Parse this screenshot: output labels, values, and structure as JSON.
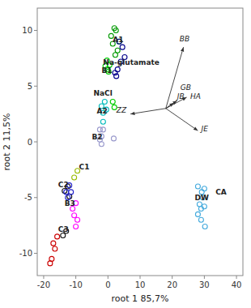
{
  "chart_data": {
    "type": "scatter",
    "xlabel": "root 1   85,7%",
    "ylabel": "root 2   11,5%",
    "xlim": [
      -22,
      42
    ],
    "ylim": [
      -12,
      12
    ],
    "xticks": [
      -20,
      -10,
      0,
      10,
      20,
      30,
      40
    ],
    "yticks": [
      -10,
      -5,
      0,
      5,
      10
    ],
    "grid": false,
    "marker": "hollow-circle",
    "series": [
      {
        "color": "#009900",
        "x": [
          2.0,
          2.5,
          1.0,
          3.5,
          1.5,
          3.0,
          2.3
        ],
        "values": [
          10.2,
          10.0,
          9.5,
          9.0,
          8.8,
          8.2,
          7.8
        ]
      },
      {
        "color": "#00008b",
        "x": [
          3.5,
          4.5,
          5.2,
          4.0
        ],
        "values": [
          9.0,
          8.5,
          7.6,
          7.2
        ]
      },
      {
        "color": "#00cc00",
        "x": [
          -0.8,
          -0.3,
          0.2,
          0.5,
          -0.3
        ],
        "values": [
          6.8,
          6.5,
          6.3,
          6.9,
          7.3
        ]
      },
      {
        "color": "#00008b",
        "x": [
          2.2,
          3.0,
          2.6
        ],
        "values": [
          6.2,
          6.5,
          5.9
        ]
      },
      {
        "color": "#00bbbb",
        "x": [
          -2.0,
          -1.5,
          -1.0,
          -0.5,
          -1.5
        ],
        "values": [
          3.2,
          2.6,
          3.6,
          2.9,
          1.8
        ]
      },
      {
        "color": "#00cc00",
        "x": [
          1.5,
          2.0
        ],
        "values": [
          3.6,
          3.1
        ]
      },
      {
        "color": "#9999cc",
        "x": [
          -2.5,
          -2.0,
          -1.5,
          -2.0,
          -2.5
        ],
        "values": [
          1.1,
          0.5,
          1.1,
          -0.2,
          0.2
        ]
      },
      {
        "color": "#9999cc",
        "x": [
          1.8
        ],
        "values": [
          0.3
        ]
      },
      {
        "color": "#99bb00",
        "x": [
          -9.5,
          -10.5
        ],
        "values": [
          -2.6,
          -3.2
        ]
      },
      {
        "color": "#111111",
        "x": [
          -12.5,
          -13.5,
          -12.0
        ],
        "values": [
          -4.0,
          -4.4,
          -4.9
        ]
      },
      {
        "color": "#2222cc",
        "x": [
          -11.5,
          -12.5,
          -13.0,
          -12.0
        ],
        "values": [
          -4.5,
          -5.0,
          -4.5,
          -3.9
        ]
      },
      {
        "color": "#ff00ff",
        "x": [
          -10.0,
          -11.0,
          -10.5,
          -9.5,
          -10.0
        ],
        "values": [
          -5.5,
          -6.0,
          -6.6,
          -7.0,
          -7.6
        ]
      },
      {
        "color": "#111111",
        "x": [
          -13.0,
          -14.0
        ],
        "values": [
          -8.0,
          -8.4
        ]
      },
      {
        "color": "#cc0000",
        "x": [
          -15.8,
          -17.0,
          -16.5,
          -17.5,
          -18.0
        ],
        "values": [
          -8.5,
          -9.1,
          -9.6,
          -10.5,
          -10.9
        ]
      },
      {
        "color": "#44aadd",
        "x": [
          28.0,
          29.2,
          30.0,
          29.5,
          28.5,
          29.0,
          30.0,
          28.0,
          29.0,
          30.2
        ],
        "values": [
          -4.0,
          -4.5,
          -4.2,
          -5.0,
          -5.6,
          -6.0,
          -5.8,
          -6.5,
          -7.0,
          -7.6
        ]
      }
    ],
    "arrows": [
      {
        "label": "BB",
        "start": [
          18,
          3.0
        ],
        "end": [
          23.5,
          8.5
        ]
      },
      {
        "label": "JB",
        "start": [
          18,
          3.0
        ],
        "end": [
          20.5,
          3.5
        ]
      },
      {
        "label": "GB",
        "start": [
          18,
          3.0
        ],
        "end": [
          21.5,
          3.7
        ]
      },
      {
        "label": "HA",
        "start": [
          18,
          3.0
        ],
        "end": [
          24.5,
          4.0
        ]
      },
      {
        "label": "JE",
        "start": [
          18,
          3.0
        ],
        "end": [
          28.0,
          1.0
        ]
      },
      {
        "label": "ZZ",
        "start": [
          18,
          3.0
        ],
        "end": [
          7.0,
          2.5
        ]
      }
    ],
    "annotations": [
      {
        "text": "Na-glutamate",
        "x": -1.5,
        "y": 7.2
      },
      {
        "text": "NaCl",
        "x": -4.5,
        "y": 4.4
      },
      {
        "text": "CA",
        "x": 33.5,
        "y": -4.5
      },
      {
        "text": "A1",
        "x": 1.5,
        "y": 9.2
      },
      {
        "text": "B1",
        "x": -2.0,
        "y": 6.8
      },
      {
        "text": "A2",
        "x": -3.5,
        "y": 2.8
      },
      {
        "text": "B2",
        "x": -5.0,
        "y": 0.5
      },
      {
        "text": "C1",
        "x": -9.0,
        "y": -2.2
      },
      {
        "text": "C2",
        "x": -15.5,
        "y": -3.8
      },
      {
        "text": "B3",
        "x": -13.5,
        "y": -5.5
      },
      {
        "text": "C3",
        "x": -15.5,
        "y": -7.8
      },
      {
        "text": "DW",
        "x": 27.0,
        "y": -5.0
      }
    ]
  }
}
